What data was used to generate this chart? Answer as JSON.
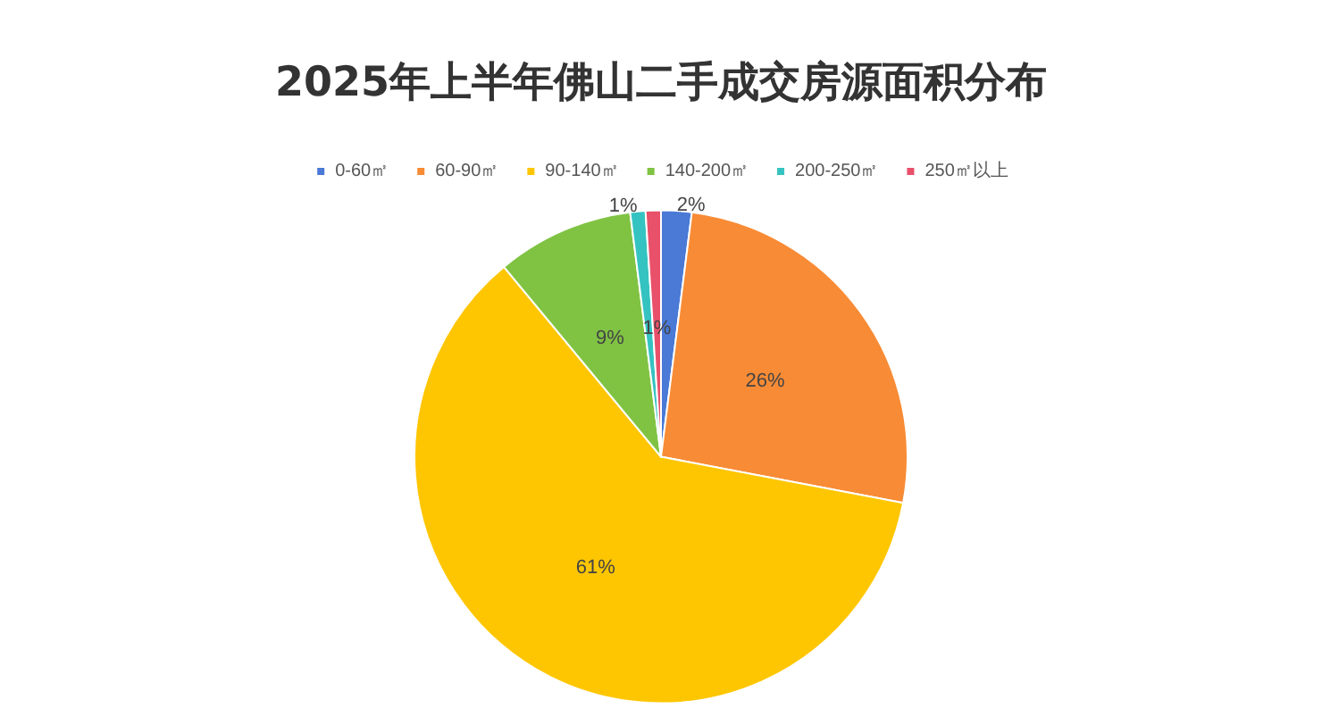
{
  "chart_data": {
    "type": "pie",
    "title": "2025年上半年佛山二手成交房源面积分布",
    "categories": [
      "0-60㎡",
      "60-90㎡",
      "90-140㎡",
      "140-200㎡",
      "200-250㎡",
      "250㎡以上"
    ],
    "values": [
      2,
      26,
      61,
      9,
      1,
      1
    ],
    "value_labels": [
      "2%",
      "26%",
      "61%",
      "9%",
      "1%",
      "1%"
    ],
    "colors": [
      "#4a79d6",
      "#f88b35",
      "#fec601",
      "#80c343",
      "#35c3c1",
      "#e9506a"
    ],
    "legend": "top"
  }
}
